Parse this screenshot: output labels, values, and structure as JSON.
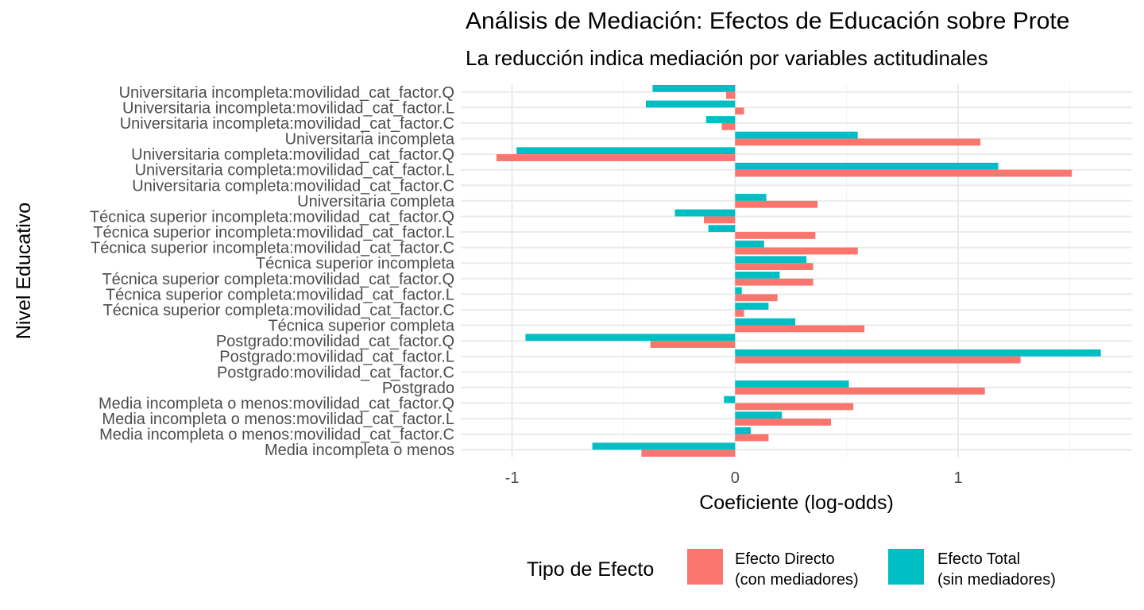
{
  "chart_data": {
    "type": "bar",
    "orientation": "horizontal",
    "title": "Análisis de Mediación: Efectos de Educación sobre Prote",
    "subtitle": "La reducción indica mediación por variables actitudinales",
    "xlabel": "Coeficiente (log-odds)",
    "ylabel": "Nivel Educativo",
    "xlim": [
      -1.23,
      1.78
    ],
    "xticks": [
      -1,
      0,
      1
    ],
    "xtick_labels": [
      "-1",
      "0",
      "1"
    ],
    "grid": true,
    "legend_position": "bottom",
    "legend_title": "Tipo de Efecto",
    "categories": [
      "Universitaria incompleta:movilidad_cat_factor.Q",
      "Universitaria incompleta:movilidad_cat_factor.L",
      "Universitaria incompleta:movilidad_cat_factor.C",
      "Universitaria incompleta",
      "Universitaria completa:movilidad_cat_factor.Q",
      "Universitaria completa:movilidad_cat_factor.L",
      "Universitaria completa:movilidad_cat_factor.C",
      "Universitaria completa",
      "Técnica superior incompleta:movilidad_cat_factor.Q",
      "Técnica superior incompleta:movilidad_cat_factor.L",
      "Técnica superior incompleta:movilidad_cat_factor.C",
      "Técnica superior incompleta",
      "Técnica superior completa:movilidad_cat_factor.Q",
      "Técnica superior completa:movilidad_cat_factor.L",
      "Técnica superior completa:movilidad_cat_factor.C",
      "Técnica superior completa",
      "Postgrado:movilidad_cat_factor.Q",
      "Postgrado:movilidad_cat_factor.L",
      "Postgrado:movilidad_cat_factor.C",
      "Postgrado",
      "Media incompleta o menos:movilidad_cat_factor.Q",
      "Media incompleta o menos:movilidad_cat_factor.L",
      "Media incompleta o menos:movilidad_cat_factor.C",
      "Media incompleta o menos"
    ],
    "series": [
      {
        "name": "Efecto Directo (con mediadores)",
        "legend_lines": [
          "Efecto Directo",
          "(con mediadores)"
        ],
        "color": "#F8766D",
        "values": [
          -0.04,
          0.04,
          -0.06,
          1.1,
          -1.07,
          1.51,
          0.0,
          0.37,
          -0.14,
          0.36,
          0.55,
          0.35,
          0.35,
          0.19,
          0.04,
          0.58,
          -0.38,
          1.28,
          0.0,
          1.12,
          0.53,
          0.43,
          0.15,
          -0.42
        ]
      },
      {
        "name": "Efecto Total (sin mediadores)",
        "legend_lines": [
          "Efecto Total",
          "(sin mediadores)"
        ],
        "color": "#00BFC4",
        "values": [
          -0.37,
          -0.4,
          -0.13,
          0.55,
          -0.98,
          1.18,
          0.0,
          0.14,
          -0.27,
          -0.12,
          0.13,
          0.32,
          0.2,
          0.03,
          0.15,
          0.27,
          -0.94,
          1.64,
          0.0,
          0.51,
          -0.05,
          0.21,
          0.07,
          -0.64
        ]
      }
    ]
  }
}
